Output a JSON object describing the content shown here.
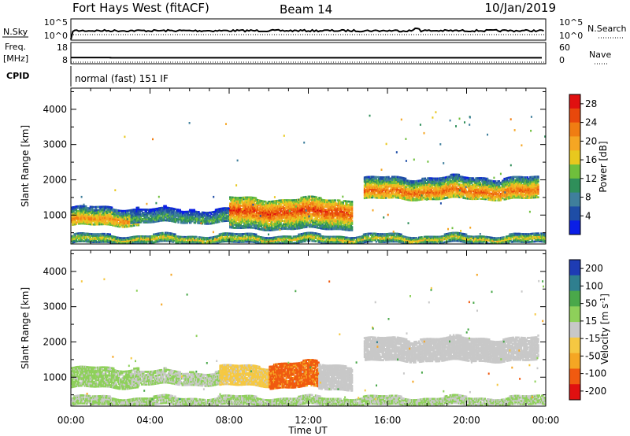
{
  "header": {
    "station": "Fort Hays West (fitACF)",
    "beam": "Beam 14",
    "date": "10/Jan/2019"
  },
  "strips": {
    "nsky_label": "N.Sky",
    "nsky_ticks": [
      "10^5",
      "10^0"
    ],
    "nsearch_label": "N.Search",
    "nsearch_ticks": [
      "10^5",
      "10^0"
    ],
    "freq_label": "Freq.",
    "freq_unit": "[MHz]",
    "freq_ticks": [
      "18",
      "8"
    ],
    "freq_mhz": [
      {
        "start_h": 0.0,
        "end_h": 2.0,
        "value": 10.6
      },
      {
        "start_h": 2.0,
        "end_h": 23.8,
        "value": 10.4
      }
    ],
    "nave_label": "Nave",
    "nave_ticks": [
      "60",
      "0"
    ],
    "cpid_label": "CPID",
    "cpid_text": "normal (fast) 151 IF"
  },
  "chart_data": [
    {
      "type": "heatmap",
      "panel": "power",
      "ylabel": "Slant Range [km]",
      "xlabel": "",
      "xlim_hours": [
        0,
        24
      ],
      "ylim_km": [
        180,
        4600
      ],
      "y_ticks": [
        "4000",
        "3000",
        "2000",
        "1000"
      ],
      "colorbar": {
        "label": "Power [dB]",
        "ticks": [
          "28",
          "24",
          "20",
          "16",
          "12",
          "8",
          "4"
        ],
        "range": [
          0,
          30
        ],
        "colors": [
          "#0a1ee6",
          "#1e4da6",
          "#3f7f9c",
          "#2f8f5a",
          "#6fbf3c",
          "#e8c81e",
          "#f5a623",
          "#f07d12",
          "#e8480c",
          "#e01010"
        ]
      },
      "regions": [
        {
          "t0": 0.0,
          "t1": 3.4,
          "r_top": 1200,
          "r_bottom": 700,
          "core_km": 850,
          "power_db": 20
        },
        {
          "t0": 3.0,
          "t1": 8.0,
          "r_top": 1150,
          "r_bottom": 780,
          "core_km": 880,
          "power_db": 11
        },
        {
          "t0": 8.0,
          "t1": 14.2,
          "r_top": 1450,
          "r_bottom": 600,
          "core_km": 1080,
          "power_db": 24
        },
        {
          "t0": 14.8,
          "t1": 23.6,
          "r_top": 2050,
          "r_bottom": 1450,
          "core_km": 1650,
          "power_db": 22
        },
        {
          "t0": 0.0,
          "t1": 24.0,
          "r_top": 420,
          "r_bottom": 200,
          "core_km": 300,
          "power_db": 16
        }
      ]
    },
    {
      "type": "heatmap",
      "panel": "velocity",
      "ylabel": "Slant Range [km]",
      "xlabel": "Time UT",
      "xlim_hours": [
        0,
        24
      ],
      "ylim_km": [
        180,
        4600
      ],
      "y_ticks": [
        "4000",
        "3000",
        "2000",
        "1000"
      ],
      "x_ticks": [
        "00:00",
        "04:00",
        "08:00",
        "12:00",
        "16:00",
        "20:00",
        "00:00"
      ],
      "colorbar": {
        "label": "Velocity [m s^-1]",
        "ticks": [
          "200",
          "100",
          "50",
          "15",
          "-15",
          "-50",
          "-100",
          "-200"
        ],
        "range": [
          -250,
          250
        ],
        "colors": [
          "#e01010",
          "#f05a10",
          "#f5a623",
          "#f5c842",
          "#c8c8c8",
          "#8ed05a",
          "#4aa84a",
          "#2f7f8f",
          "#1e3cb4"
        ]
      },
      "regions": [
        {
          "t0": 0.0,
          "t1": 3.4,
          "r_top": 1250,
          "r_bottom": 700,
          "velocity_ms": 40
        },
        {
          "t0": 3.0,
          "t1": 7.5,
          "r_top": 1150,
          "r_bottom": 780,
          "velocity_ms": 25
        },
        {
          "t0": 7.5,
          "t1": 10.5,
          "r_top": 1300,
          "r_bottom": 750,
          "velocity_ms": -40
        },
        {
          "t0": 10.0,
          "t1": 12.5,
          "r_top": 1400,
          "r_bottom": 700,
          "velocity_ms": -150
        },
        {
          "t0": 12.5,
          "t1": 14.2,
          "r_top": 1350,
          "r_bottom": 650,
          "velocity_ms": -5
        },
        {
          "t0": 14.8,
          "t1": 23.6,
          "r_top": 2100,
          "r_bottom": 1450,
          "velocity_ms": 0
        },
        {
          "t0": 0.0,
          "t1": 24.0,
          "r_top": 420,
          "r_bottom": 200,
          "velocity_ms": 30
        }
      ]
    }
  ]
}
